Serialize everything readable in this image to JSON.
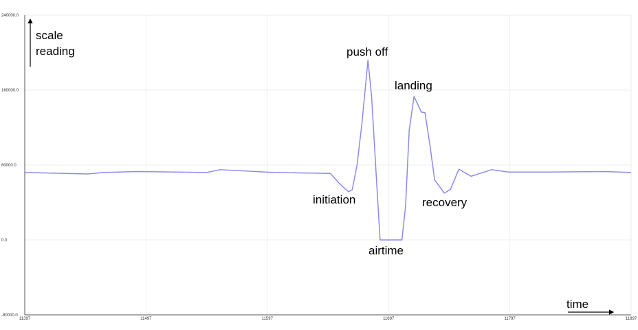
{
  "chart_data": {
    "type": "line",
    "x": [
      11397,
      11449,
      11462,
      11490,
      11547,
      11558,
      11603,
      11649,
      11657,
      11664,
      11667,
      11671,
      11675,
      11680,
      11683,
      11687,
      11690,
      11694,
      11708,
      11711,
      11714,
      11718,
      11721,
      11724,
      11727,
      11731,
      11735,
      11743,
      11748,
      11755,
      11765,
      11782,
      11796,
      11830,
      11875,
      11897
    ],
    "series": [
      {
        "color": "#8a8af0",
        "values": [
          72000,
          70500,
          72000,
          73000,
          72000,
          75000,
          72000,
          71000,
          59500,
          51400,
          53500,
          80000,
          124000,
          192000,
          153000,
          65000,
          0,
          0,
          0,
          36000,
          117000,
          153000,
          145000,
          136500,
          136000,
          102000,
          64000,
          50000,
          54000,
          75500,
          68000,
          75000,
          72500,
          72500,
          73000,
          72000
        ]
      }
    ],
    "xlim": [
      11397,
      11897
    ],
    "xticks": [
      11397,
      11497,
      11597,
      11697,
      11797,
      11897
    ],
    "ylim": [
      -80000,
      240000
    ],
    "yticks": [
      {
        "value": -80000,
        "label": "-80000.0"
      },
      {
        "value": 0,
        "label": "0.0"
      },
      {
        "value": 80000,
        "label": "80000.0"
      },
      {
        "value": 160000,
        "label": "160000.0"
      },
      {
        "value": 240000,
        "label": "240000.0"
      }
    ],
    "grid": true,
    "ylabel_lines": [
      "scale",
      "reading"
    ],
    "xlabel": "time",
    "annotations": [
      "push off",
      "landing",
      "initiation",
      "recovery",
      "airtime"
    ]
  }
}
